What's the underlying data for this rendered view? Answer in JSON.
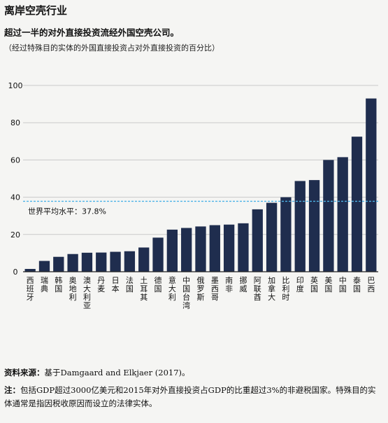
{
  "header": {
    "title": "离岸空壳行业",
    "subtitle": "超过一半的对外直接投资流经外国空壳公司。",
    "subtitle2": "（经过特殊目的实体的外国直接投资占对外直接投资的百分比）"
  },
  "footer": {
    "source_label": "资料来源：",
    "source_text": "基于Damgaard and Elkjaer (2017)。",
    "note_label": "注：",
    "note_text": "包括GDP超过3000亿美元和2015年对外直接投资占GDP的比重超过3%的非避税国家。特殊目的实体通常是指因税收原因而设立的法律实体。"
  },
  "colors": {
    "bar": "#1f2d4e",
    "reference_line": "#4db3e6",
    "axis": "#222222"
  },
  "chart_data": {
    "type": "bar",
    "title": "",
    "xlabel": "",
    "ylabel": "",
    "ylim": [
      0,
      100
    ],
    "yticks": [
      "0",
      "20",
      "40",
      "60",
      "80",
      "100"
    ],
    "categories": [
      "西班牙",
      "瑞典",
      "韩国",
      "奥地利",
      "澳大利亚",
      "丹麦",
      "日本",
      "法国",
      "土耳其",
      "德国",
      "意大利",
      "中国台湾",
      "俄罗斯",
      "墨西哥",
      "南非",
      "挪威",
      "阿联酋",
      "加拿大",
      "比利时",
      "印度",
      "英国",
      "美国",
      "中国",
      "泰国",
      "巴西"
    ],
    "values": [
      1.5,
      5.8,
      8,
      9.5,
      10.2,
      10.3,
      10.7,
      11,
      13,
      18.3,
      22.6,
      23.5,
      24.3,
      25,
      25.3,
      26,
      33.5,
      37,
      40,
      48.7,
      49.2,
      60,
      61.5,
      72.5,
      93
    ],
    "reference": {
      "label": "世界平均水平：37.8%",
      "value": 37.8
    },
    "grid": true
  }
}
